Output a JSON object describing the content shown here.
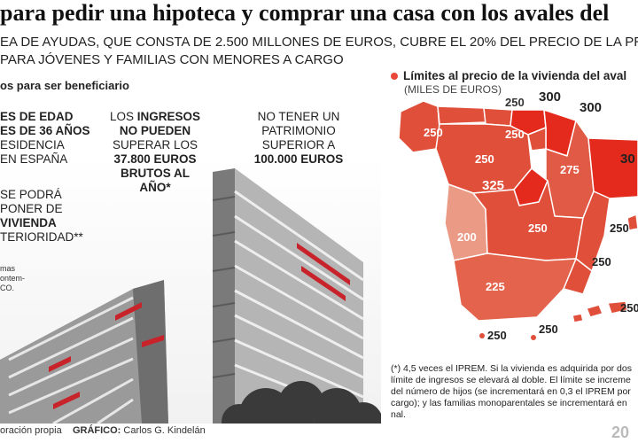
{
  "header": {
    "title": "para pedir una hipoteca y comprar una casa con los avales del",
    "subtitle_line1": "EA DE AYUDAS, QUE CONSTA DE 2.500 MILLONES DE EUROS, CUBRE EL 20% DEL PRECIO DE LA PRI",
    "subtitle_line2": "PARA JÓVENES Y FAMILIAS CON MENORES A CARGO"
  },
  "requirements": {
    "section_label": "os para ser beneficiario",
    "age": {
      "l1": "ES DE EDAD",
      "l2": "ES DE 36 AÑOS",
      "l3": "ESIDENCIA",
      "l4": "EN ESPAÑA"
    },
    "income": {
      "l1a": "LOS ",
      "l1b": "INGRESOS",
      "l2": "NO PUEDEN",
      "l3": "SUPERAR LOS",
      "l4": "37.800 EUROS",
      "l5": "BRUTOS AL AÑO*"
    },
    "wealth": {
      "l1": "NO TENER UN",
      "l2": "PATRIMONIO",
      "l3": "SUPERIOR A",
      "l4": "100.000 EUROS"
    },
    "property": {
      "l1": "SE PODRÁ",
      "l2": "PONER DE",
      "l3": "VIVIENDA",
      "l4": "TERIORIDAD**"
    }
  },
  "photo_note": {
    "l1": "mas",
    "l2": "ontem-",
    "l3": "CO."
  },
  "footer": {
    "source": "oración propia",
    "credit_label": "GRÁFICO:",
    "credit_name": "Carlos G. Kindelán"
  },
  "map": {
    "title": "Límites al precio de la vivienda del aval",
    "unit": "(MILES DE EUROS)",
    "colors": {
      "c300": "#e42a1c",
      "c250": "#df4f3a",
      "c275": "#e05a45",
      "c325": "#e42a1c",
      "c225": "#e3634c",
      "c200": "#eb9a86",
      "border": "#ffffff"
    },
    "labels": {
      "galicia": "250",
      "asturias": "250",
      "cantabria": "250",
      "pais_vasco": "300",
      "navarra": "300",
      "castilla_leon": "250",
      "madrid": "325",
      "aragon": "275",
      "cataluna": "30",
      "extremadura": "200",
      "castilla_la_mancha": "250",
      "valencia": "250",
      "andalucia": "225",
      "murcia": "250",
      "baleares": "250",
      "canarias": "250",
      "ceuta": "250",
      "melilla": "250"
    }
  },
  "note": {
    "text": "(*) 4,5 veces el IPREM. Si la vivienda es adquirida por dos límite de ingresos se elevará al doble. El límite se increme del número de hijos (se incrementará en 0,3 el IPREM por cargo); y las familias monoparentales se incrementará en nal."
  },
  "year": "20"
}
